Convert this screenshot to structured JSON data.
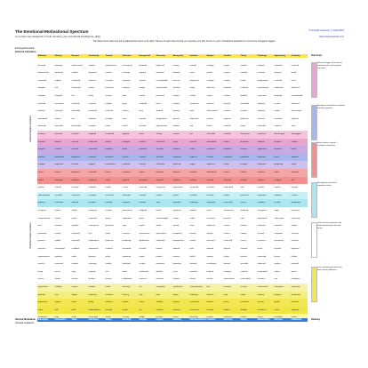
{
  "header": {
    "title": "The Emotional-Motivational Spectrum",
    "subtitle": "A mental map designed to help develop your emotional intelligence (EQ).",
    "rights": "© All rights reserved. © Guild 2016",
    "url": "https://www.eqtools.com",
    "note": "The table below helps (for left to adjacent/connects to far right). Names of each listed to help you develop your EQ. Focus on your motivational aspirations to overcome struggles/ triggers."
  },
  "labels": {
    "ext_emotion": "Extranged Emotion",
    "ext_activation": "External Activation",
    "internal_motivation": "Internal Motivation",
    "societal_guidance": "Societal Guidance",
    "outcomes": "Outcomes",
    "intimacy": "Intimacy",
    "left_band_top": "Reactive/Negative Emotions",
    "left_band_bottom": "Proactive/Positive Emotions"
  },
  "columns": [
    "Affliction",
    "Sinking",
    "Respect",
    "Conformity",
    "Trauma",
    "Unknown",
    "Unexpected",
    "Obscurity",
    "Anonymity",
    "Isolation",
    "Neglect",
    "Conflict",
    "Threat",
    "Challenge",
    "Opportunity",
    "Creativity"
  ],
  "row_colors": [
    "#ffffff",
    "#ffffff",
    "#ffffff",
    "#ffffff",
    "#ffffff",
    "#ffffff",
    "#ffffff",
    "#ffffff",
    "#ffffff",
    "#f6c2dc",
    "#e8a5cf",
    "#c9a9e2",
    "#a9b6ee",
    "#cfc0ef",
    "#f4a6a6",
    "#f58e8e",
    "#ffffff",
    "#c6f0f4",
    "#a9e6ef",
    "#ffffff",
    "#ffffff",
    "#ffffff",
    "#ffffff",
    "#ffffff",
    "#ffffff",
    "#ffffff",
    "#ffffff",
    "#ffffff",
    "#ffffff",
    "#f6f2a8",
    "#f3ee7e",
    "#f0e752",
    "#f0e642",
    "#fff7a0"
  ],
  "rows": [
    [
      "disrupted",
      "sabotage",
      "embarrassed",
      "trapped",
      "apprehensive",
      "remorseless",
      "disturbed",
      "frightened",
      "uneasy",
      "isolated",
      "unhappy",
      "scared",
      "irritated",
      "annoyed",
      "frustrated",
      "confused"
    ],
    [
      "disheartened",
      "distracted",
      "evaded",
      "dismayed",
      "nervous",
      "contempt",
      "agitated",
      "emotional",
      "alarmed",
      "upset",
      "jealous",
      "worried",
      "troubled",
      "uncertain",
      "stressed",
      "bored"
    ],
    [
      "mistreated",
      "helpless",
      "humiliated",
      "stressed",
      "uncertain",
      "frustrated",
      "worried",
      "uncomfortable",
      "insecure",
      "displeased",
      "unhappy",
      "hesitant",
      "hostile",
      "disappointed",
      "confused",
      "tense"
    ],
    [
      "wronged",
      "hurt",
      "threatened",
      "jealous",
      "obsessed",
      "annoyed",
      "moody",
      "embarrassed",
      "shocked",
      "lonely",
      "defensive",
      "bothered",
      "confused",
      "overwhelmed",
      "ambivalent",
      "distracted"
    ],
    [
      "outraged",
      "betrayed",
      "lost",
      "lonely",
      "anxious",
      "bitter",
      "rushed",
      "pressured",
      "anxious",
      "trouble",
      "unsure",
      "clueless",
      "doubtful",
      "concerned",
      "disturbed",
      "uncomfortable"
    ],
    [
      "provoked",
      "mistreated",
      "confused",
      "cornered",
      "helpless",
      "jittery",
      "unsettled",
      "tense",
      "isolated",
      "suspicious",
      "reluctant",
      "frazzled",
      "vulnerable",
      "impatient",
      "unclear",
      "distracted"
    ],
    [
      "attacked",
      "victimized",
      "vulnerable",
      "pressured",
      "confused",
      "restless",
      "wary",
      "stunned",
      "grieving",
      "weak",
      "self-centered",
      "cautious",
      "resistant",
      "impatient",
      "stalled",
      "discouraged"
    ],
    [
      "abandoned",
      "anxious",
      "lost",
      "defeated",
      "wronged",
      "upset",
      "rejected",
      "disappointed",
      "ignored",
      "depressed",
      "careless",
      "opposed",
      "defensive",
      "reluctant",
      "frustrated",
      "apathetic"
    ],
    [
      "distraught",
      "tormented",
      "devastated",
      "wronged",
      "afraid",
      "fearful",
      "shocked",
      "apprehensive",
      "helpless",
      "sad",
      "fearful",
      "resentful",
      "angry",
      "pressured",
      "hopeless",
      "stuck"
    ],
    [
      "seething",
      "infuriated",
      "resentful",
      "obligated",
      "humiliated",
      "agitated",
      "frantic",
      "sinking",
      "worried",
      "lost",
      "vulnerable",
      "resentful",
      "threatened",
      "powerless",
      "discouraged",
      "disengaged"
    ],
    [
      "shocked",
      "abused",
      "rejected",
      "suffocated",
      "inferior",
      "outraged",
      "startled",
      "mistrustful",
      "upset",
      "rejected",
      "abandoned",
      "defiant",
      "disturbed",
      "stubborn",
      "skeptical",
      "restless"
    ],
    [
      "vengeful",
      "crushed",
      "mocked",
      "repressed",
      "appalled",
      "dread",
      "panicked",
      "shocked",
      "hopeless",
      "lonely",
      "unwanted",
      "rebellious",
      "insecure",
      "aggressive",
      "impatient",
      "bored"
    ],
    [
      "horrified",
      "devastated",
      "disgraced",
      "enslaved",
      "shattered",
      "terrified",
      "stunned",
      "deceived",
      "desperate",
      "hopeless",
      "unloved",
      "combative",
      "powerless",
      "desperate",
      "bored",
      "stagnant"
    ],
    [
      "enraged",
      "anguished",
      "shamed",
      "trapped",
      "traumatized",
      "panicked",
      "alarmed",
      "vulnerable",
      "detached",
      "empty",
      "neglected",
      "hostile",
      "enraged",
      "distressed",
      "despairing",
      "empty"
    ],
    [
      "furious",
      "despair",
      "degraded",
      "controlled",
      "broken",
      "paralyzed",
      "aghast",
      "betrayed",
      "dejected",
      "desolate",
      "abandoned",
      "furious",
      "hateful",
      "hopeless",
      "jaded",
      "apathetic"
    ],
    [
      "hateful",
      "destroyed",
      "worthless",
      "powerless",
      "numb",
      "petrified",
      "dismayed",
      "exposed",
      "worthless",
      "isolated",
      "rejected",
      "infuriated",
      "terrified",
      "helpless",
      "resigned",
      "dull"
    ],
    [
      "grateful",
      "relieved",
      "honored",
      "validated",
      "healed",
      "curious",
      "surprised",
      "recognized",
      "appreciated",
      "connected",
      "cared-for",
      "understood",
      "safe",
      "capable",
      "hopeful",
      "inspired"
    ],
    [
      "understanding",
      "consoled",
      "respected",
      "accepted",
      "recovered",
      "interested",
      "amused",
      "noticed",
      "valued",
      "included",
      "nurtured",
      "settled",
      "protected",
      "competent",
      "optimistic",
      "creative"
    ],
    [
      "forgiving",
      "comforted",
      "admired",
      "included",
      "restored",
      "intrigued",
      "amazed",
      "seen",
      "important",
      "belonging",
      "supported",
      "reconciled",
      "secure",
      "confident",
      "excited",
      "imaginative"
    ],
    [
      "accepting",
      "hopeful",
      "worthy",
      "belonging",
      "resilient",
      "adventurous",
      "delighted",
      "heard",
      "significant",
      "bonded",
      "loved",
      "harmonious",
      "sheltered",
      "courageous",
      "eager",
      "innovative"
    ],
    [
      "compassionate",
      "healed",
      "proud",
      "respected",
      "strong",
      "explorative",
      "joyful",
      "acknowledged",
      "unique",
      "united",
      "cherished",
      "peaceful",
      "calm",
      "determined",
      "enthusiastic",
      "expressive"
    ],
    [
      "kind",
      "renewed",
      "dignified",
      "autonomous",
      "grounded",
      "open",
      "playful",
      "visible",
      "special",
      "close",
      "embraced",
      "at-ease",
      "relaxed",
      "persistent",
      "motivated",
      "original"
    ],
    [
      "benevolent",
      "revived",
      "esteemed",
      "free",
      "stable",
      "receptive",
      "spontaneous",
      "appreciated",
      "recognized",
      "intimate",
      "adored",
      "content",
      "tranquil",
      "focused",
      "energized",
      "visionary"
    ],
    [
      "gracious",
      "uplifted",
      "honorable",
      "independent",
      "balanced",
      "wondering",
      "lighthearted",
      "celebrated",
      "distinguished",
      "trusted",
      "treasured",
      "reconciled",
      "serene",
      "tenacious",
      "passionate",
      "inventive"
    ],
    [
      "generous",
      "encouraged",
      "confident",
      "empowered",
      "centered",
      "fascinated",
      "cheerful",
      "famous",
      "admired",
      "loyal",
      "devoted",
      "forgiven",
      "assured",
      "driven",
      "inspired",
      "ingenious"
    ],
    [
      "magnanimous",
      "optimistic",
      "noble",
      "liberated",
      "whole",
      "captivated",
      "elated",
      "praised",
      "eminent",
      "faithful",
      "adoring",
      "unified",
      "fearless",
      "committed",
      "fervent",
      "brilliant"
    ],
    [
      "merciful",
      "reassured",
      "majestic",
      "sovereign",
      "healthy",
      "enthralled",
      "ecstatic",
      "renowned",
      "legendary",
      "devoted",
      "worshipped",
      "blessed",
      "invincible",
      "dedicated",
      "zealous",
      "masterful"
    ],
    [
      "loving",
      "secure",
      "regal",
      "unbound",
      "vital",
      "awed",
      "exhilarated",
      "glorified",
      "iconic",
      "soulmate",
      "beloved",
      "complete",
      "unafraid",
      "unstoppable",
      "ardent",
      "genius"
    ],
    [
      "serene",
      "steady",
      "sacred",
      "limitless",
      "thriving",
      "enlightened",
      "rapturous",
      "immortal",
      "timeless",
      "eternal",
      "sacred",
      "transcendent",
      "untouchable",
      "victorious",
      "rapt",
      "prodigious"
    ],
    [
      "appreciation",
      "reliability",
      "esteem",
      "freedom",
      "health",
      "discovery",
      "fun",
      "recognition",
      "significance",
      "companionship",
      "love",
      "harmony",
      "security",
      "achievement",
      "anticipation",
      "expression"
    ],
    [
      "gratitude",
      "trust",
      "dignity",
      "autonomy",
      "resilience",
      "learning",
      "play",
      "fame",
      "legacy",
      "belonging",
      "affection",
      "unity",
      "safety",
      "mastery",
      "progress",
      "imagination"
    ],
    [
      "forgiveness",
      "support",
      "honor",
      "liberty",
      "wellness",
      "wisdom",
      "humor",
      "visibility",
      "purpose",
      "community",
      "devotion",
      "peace",
      "protection",
      "success",
      "growth",
      "invention"
    ],
    [
      "mercy",
      "faith",
      "pride",
      "independence",
      "strength",
      "insight",
      "joy",
      "celebrity",
      "meaning",
      "connection",
      "intimacy",
      "balance",
      "stability",
      "excellence",
      "vision",
      "originality"
    ],
    [
      "acceptance",
      "hope",
      "worth",
      "sovereignty",
      "vitality",
      "curiosity",
      "delight",
      "prestige",
      "impact",
      "fellowship",
      "passion",
      "wholeness",
      "comfort",
      "victory",
      "possibility",
      "artistry"
    ]
  ],
  "bottom_row": [
    "Belonging",
    "Connection",
    "Value",
    "Autonomy",
    "Safety",
    "Certainty",
    "Intrigue",
    "Legacy",
    "Intimacy",
    "Interdependence",
    "Freedom",
    "Harmony",
    "Clarity",
    "Stewardship",
    "Purpose",
    "Fulfillment"
  ],
  "bottom_colors": [
    "#3a7bd5",
    "#3a7bd5",
    "#3a7bd5",
    "#3a7bd5",
    "#3a7bd5",
    "#3a7bd5",
    "#3a7bd5",
    "#3a7bd5",
    "#3a7bd5",
    "#3a7bd5",
    "#3a7bd5",
    "#3a7bd5",
    "#3a7bd5",
    "#3a7bd5",
    "#3a7bd5",
    "#3a7bd5"
  ],
  "side_sections": [
    {
      "color": "#e8a5cf",
      "text": "Reactive triggers that lead to emotional pain and negative outcomes."
    },
    {
      "color": "#a9b6ee",
      "text": "Avoidance and defense patterns that block growth."
    },
    {
      "color": "#f58e8e",
      "text": "Acute distress signals — recognize and pause."
    },
    {
      "color": "#a9e6ef",
      "text": "Recognition of positive emotional states."
    },
    {
      "color": "#ffffff",
      "text": "Constructive responses that build relationships and well-being."
    },
    {
      "color": "#f0e752",
      "text": "Core motivational needs that drive lasting fulfillment."
    }
  ]
}
